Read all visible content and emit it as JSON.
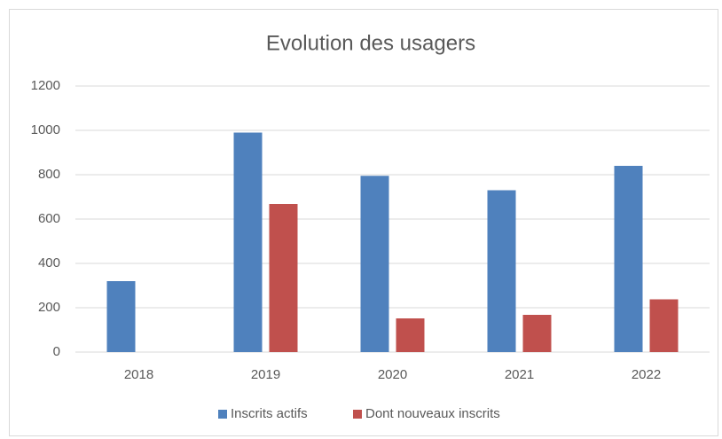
{
  "chart_data": {
    "type": "bar",
    "title": "Evolution des usagers",
    "categories": [
      "2018",
      "2019",
      "2020",
      "2021",
      "2022"
    ],
    "series": [
      {
        "name": "Inscrits actifs",
        "color": "#4f81bd",
        "values": [
          320,
          990,
          795,
          730,
          840
        ]
      },
      {
        "name": "Dont nouveaux inscrits",
        "color": "#c0504d",
        "values": [
          null,
          668,
          152,
          168,
          238
        ]
      }
    ],
    "ylim": [
      0,
      1200
    ],
    "yticks": [
      0,
      200,
      400,
      600,
      800,
      1000,
      1200
    ],
    "grid": true,
    "legend": "bottom"
  }
}
